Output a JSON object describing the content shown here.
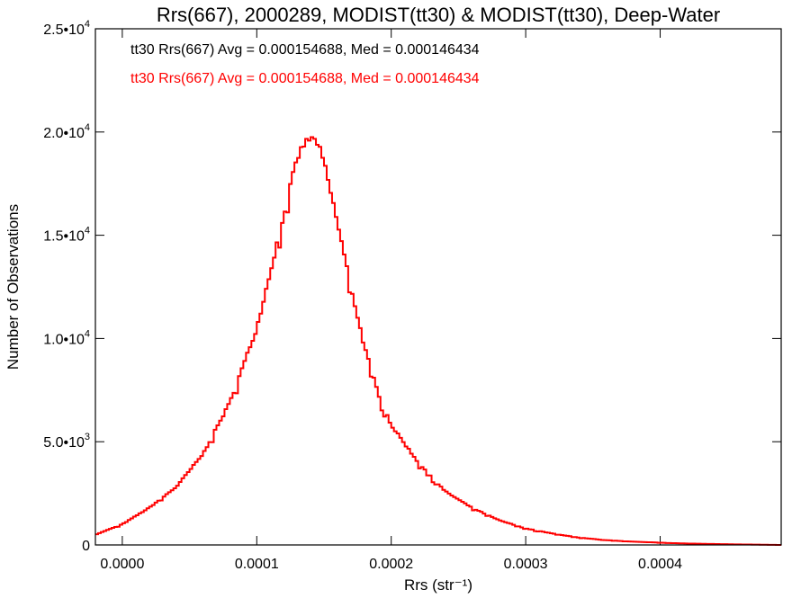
{
  "chart_data": {
    "type": "histogram",
    "title": "Rrs(667), 2000289, MODIST(tt30) & MODIST(tt30), Deep-Water",
    "xlabel": "Rrs (str⁻¹)",
    "ylabel": "Number of Observations",
    "xlim": [
      -2e-05,
      0.00049
    ],
    "ylim": [
      0,
      25000
    ],
    "x_ticks": [
      {
        "value": 0.0,
        "label": "0.0000"
      },
      {
        "value": 0.0001,
        "label": "0.0001"
      },
      {
        "value": 0.0002,
        "label": "0.0002"
      },
      {
        "value": 0.0003,
        "label": "0.0003"
      },
      {
        "value": 0.0004,
        "label": "0.0004"
      }
    ],
    "y_ticks": [
      {
        "value": 0,
        "mant": "0",
        "exp": ""
      },
      {
        "value": 5000,
        "mant": "5.0•10",
        "exp": "3"
      },
      {
        "value": 10000,
        "mant": "1.0•10",
        "exp": "4"
      },
      {
        "value": 15000,
        "mant": "1.5•10",
        "exp": "4"
      },
      {
        "value": 20000,
        "mant": "2.0•10",
        "exp": "4"
      },
      {
        "value": 25000,
        "mant": "2.5•10",
        "exp": "4"
      }
    ],
    "legend": [
      {
        "text": "tt30 Rrs(667) Avg = 0.000154688, Med = 0.000146434",
        "color": "#000000"
      },
      {
        "text": "tt30 Rrs(667) Avg = 0.000154688, Med = 0.000146434",
        "color": "#ff0000"
      }
    ],
    "legend_position": "top-left",
    "series_color": "#ff0000",
    "bin_width": 2e-06,
    "series": [
      {
        "x": [
          -2e-05,
          0.0,
          2e-05,
          4e-05,
          6e-05,
          8e-05,
          0.0001,
          0.00011,
          0.00012,
          0.00013,
          0.000135,
          0.00014,
          0.000145,
          0.00015,
          0.00016,
          0.00017,
          0.00018,
          0.00019,
          0.0002,
          0.00022,
          0.00024,
          0.00026,
          0.00028,
          0.0003,
          0.00032,
          0.00034,
          0.00036,
          0.00038,
          0.0004,
          0.00042,
          0.00044,
          0.00046,
          0.00049
        ],
        "values": [
          500,
          1000,
          1800,
          2800,
          4400,
          6900,
          10500,
          13200,
          16000,
          18700,
          19400,
          19700,
          19500,
          18500,
          15600,
          12500,
          9600,
          7400,
          5800,
          4000,
          2600,
          1800,
          1200,
          800,
          550,
          350,
          230,
          160,
          110,
          70,
          45,
          25,
          0
        ]
      }
    ]
  }
}
